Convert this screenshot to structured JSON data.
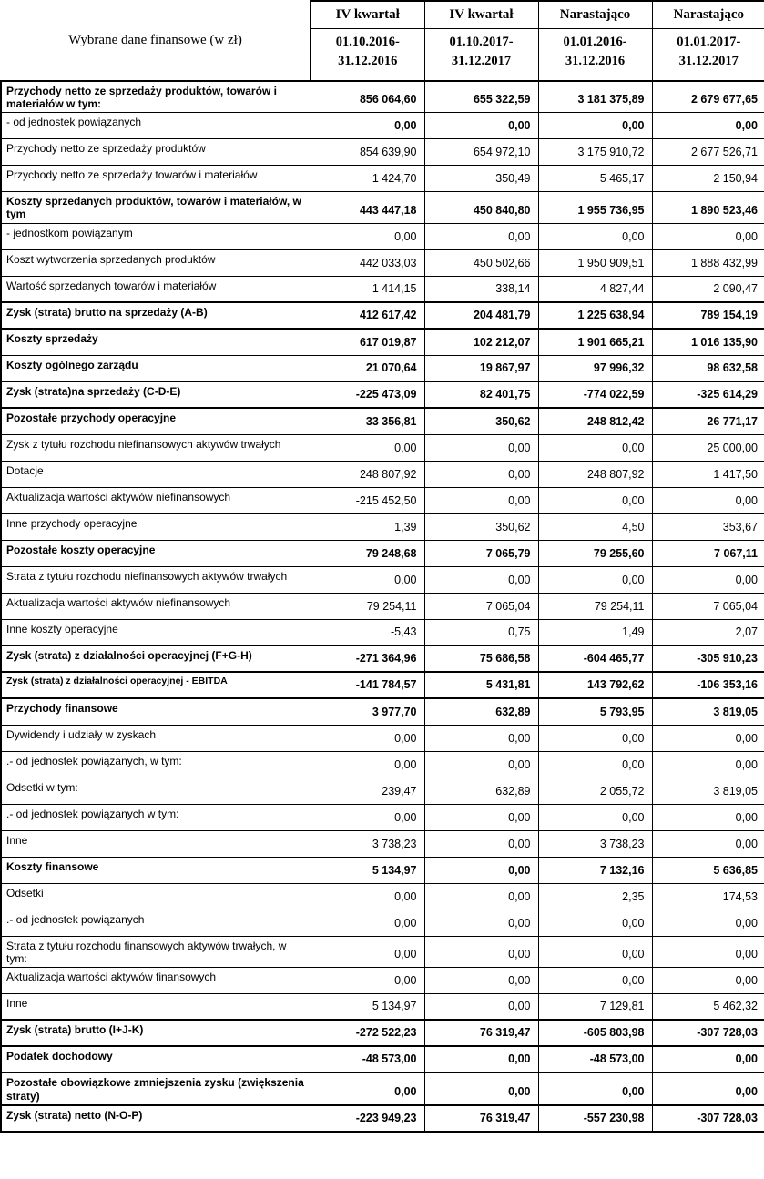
{
  "table": {
    "corner_label": "Wybrane dane finansowe (w zł)",
    "columns": [
      {
        "period": "IV kwartał",
        "range1": "01.10.2016-",
        "range2": "31.12.2016"
      },
      {
        "period": "IV kwartał",
        "range1": "01.10.2017-",
        "range2": "31.12.2017"
      },
      {
        "period": "Narastająco",
        "range1": "01.01.2016-",
        "range2": "31.12.2016"
      },
      {
        "period": "Narastająco",
        "range1": "01.01.2017-",
        "range2": "31.12.2017"
      }
    ],
    "rows": [
      {
        "label": "Przychody netto ze sprzedaży produktów, towarów i materiałów w tym:",
        "bold": true,
        "values": [
          "856 064,60",
          "655 322,59",
          "3 181 375,89",
          "2 679 677,65"
        ]
      },
      {
        "label": "- od jednostek powiązanych",
        "bold_values": true,
        "values": [
          "0,00",
          "0,00",
          "0,00",
          "0,00"
        ]
      },
      {
        "label": "Przychody netto ze sprzedaży produktów",
        "values": [
          "854 639,90",
          "654 972,10",
          "3 175 910,72",
          "2 677 526,71"
        ]
      },
      {
        "label": "Przychody netto ze sprzedaży towarów i materiałów",
        "values": [
          "1 424,70",
          "350,49",
          "5 465,17",
          "2 150,94"
        ]
      },
      {
        "label": "Koszty sprzedanych produktów, towarów i materiałów, w tym",
        "bold": true,
        "values": [
          "443 447,18",
          "450 840,80",
          "1 955 736,95",
          "1 890 523,46"
        ]
      },
      {
        "label": "- jednostkom powiązanym",
        "values": [
          "0,00",
          "0,00",
          "0,00",
          "0,00"
        ]
      },
      {
        "label": "Koszt wytworzenia sprzedanych produktów",
        "values": [
          "442 033,03",
          "450 502,66",
          "1 950 909,51",
          "1 888 432,99"
        ]
      },
      {
        "label": "Wartość sprzedanych towarów i materiałów",
        "values": [
          "1 414,15",
          "338,14",
          "4 827,44",
          "2 090,47"
        ]
      },
      {
        "label": "Zysk (strata) brutto na sprzedaży (A-B)",
        "bold": true,
        "thick_top": true,
        "values": [
          "412 617,42",
          "204 481,79",
          "1 225 638,94",
          "789 154,19"
        ]
      },
      {
        "label": "Koszty sprzedaży",
        "bold": true,
        "thick_top": true,
        "values": [
          "617 019,87",
          "102 212,07",
          "1 901 665,21",
          "1 016 135,90"
        ]
      },
      {
        "label": "Koszty ogólnego zarządu",
        "bold": true,
        "values": [
          "21 070,64",
          "19 867,97",
          "97 996,32",
          "98 632,58"
        ]
      },
      {
        "label": "Zysk (strata)na sprzedaży (C-D-E)",
        "bold": true,
        "thick_top": true,
        "values": [
          "-225 473,09",
          "82 401,75",
          "-774 022,59",
          "-325 614,29"
        ]
      },
      {
        "label": "Pozostałe przychody operacyjne",
        "bold": true,
        "thick_top": true,
        "values": [
          "33 356,81",
          "350,62",
          "248 812,42",
          "26 771,17"
        ]
      },
      {
        "label": "Zysk z tytułu rozchodu niefinansowych aktywów trwałych",
        "values": [
          "0,00",
          "0,00",
          "0,00",
          "25 000,00"
        ]
      },
      {
        "label": "Dotacje",
        "values": [
          "248 807,92",
          "0,00",
          "248 807,92",
          "1 417,50"
        ]
      },
      {
        "label": "Aktualizacja wartości aktywów niefinansowych",
        "values": [
          "-215 452,50",
          "0,00",
          "0,00",
          "0,00"
        ]
      },
      {
        "label": "Inne przychody operacyjne",
        "values": [
          "1,39",
          "350,62",
          "4,50",
          "353,67"
        ]
      },
      {
        "label": "Pozostałe koszty operacyjne",
        "bold": true,
        "values": [
          "79 248,68",
          "7 065,79",
          "79 255,60",
          "7 067,11"
        ]
      },
      {
        "label": "Strata z tytułu rozchodu niefinansowych aktywów trwałych",
        "values": [
          "0,00",
          "0,00",
          "0,00",
          "0,00"
        ]
      },
      {
        "label": "Aktualizacja wartości aktywów niefinansowych",
        "values": [
          "79 254,11",
          "7 065,04",
          "79 254,11",
          "7 065,04"
        ]
      },
      {
        "label": "Inne koszty operacyjne",
        "values": [
          "-5,43",
          "0,75",
          "1,49",
          "2,07"
        ]
      },
      {
        "label": "Zysk (strata) z działalności operacyjnej (F+G-H)",
        "bold": true,
        "thick_top": true,
        "values": [
          "-271 364,96",
          "75 686,58",
          "-604 465,77",
          "-305 910,23"
        ]
      },
      {
        "label": "Zysk (strata) z działalności operacyjnej - EBITDA",
        "bold": true,
        "small": true,
        "thick_top": true,
        "values": [
          "-141 784,57",
          "5 431,81",
          "143 792,62",
          "-106 353,16"
        ]
      },
      {
        "label": "Przychody finansowe",
        "bold": true,
        "thick_top": true,
        "values": [
          "3 977,70",
          "632,89",
          "5 793,95",
          "3 819,05"
        ]
      },
      {
        "label": "Dywidendy i udziały w zyskach",
        "values": [
          "0,00",
          "0,00",
          "0,00",
          "0,00"
        ]
      },
      {
        "label": ".- od jednostek powiązanych, w tym:",
        "values": [
          "0,00",
          "0,00",
          "0,00",
          "0,00"
        ]
      },
      {
        "label": "Odsetki w tym:",
        "values": [
          "239,47",
          "632,89",
          "2 055,72",
          "3 819,05"
        ]
      },
      {
        "label": ".- od jednostek powiązanych w tym:",
        "values": [
          "0,00",
          "0,00",
          "0,00",
          "0,00"
        ]
      },
      {
        "label": "Inne",
        "values": [
          "3 738,23",
          "0,00",
          "3 738,23",
          "0,00"
        ]
      },
      {
        "label": "Koszty finansowe",
        "bold": true,
        "values": [
          "5 134,97",
          "0,00",
          "7 132,16",
          "5 636,85"
        ]
      },
      {
        "label": "Odsetki",
        "values": [
          "0,00",
          "0,00",
          "2,35",
          "174,53"
        ]
      },
      {
        "label": ".- od jednostek powiązanych",
        "values": [
          "0,00",
          "0,00",
          "0,00",
          "0,00"
        ]
      },
      {
        "label": "Strata z tytułu rozchodu finansowych aktywów trwałych, w tym:",
        "values": [
          "0,00",
          "0,00",
          "0,00",
          "0,00"
        ]
      },
      {
        "label": "Aktualizacja wartości aktywów finansowych",
        "values": [
          "0,00",
          "0,00",
          "0,00",
          "0,00"
        ]
      },
      {
        "label": "Inne",
        "values": [
          "5 134,97",
          "0,00",
          "7 129,81",
          "5 462,32"
        ]
      },
      {
        "label": "Zysk (strata) brutto (I+J-K)",
        "bold": true,
        "thick_top": true,
        "values": [
          "-272 522,23",
          "76 319,47",
          "-605 803,98",
          "-307 728,03"
        ]
      },
      {
        "label": "Podatek dochodowy",
        "bold": true,
        "thick_top": true,
        "values": [
          "-48 573,00",
          "0,00",
          "-48 573,00",
          "0,00"
        ]
      },
      {
        "label": "Pozostałe obowiązkowe zmniejszenia zysku (zwiększenia straty)",
        "bold": true,
        "thick_top": true,
        "values": [
          "0,00",
          "0,00",
          "0,00",
          "0,00"
        ]
      },
      {
        "label": "Zysk (strata) netto (N-O-P)",
        "bold": true,
        "thick_top": true,
        "values": [
          "-223 949,23",
          "76 319,47",
          "-557 230,98",
          "-307 728,03"
        ]
      }
    ]
  }
}
